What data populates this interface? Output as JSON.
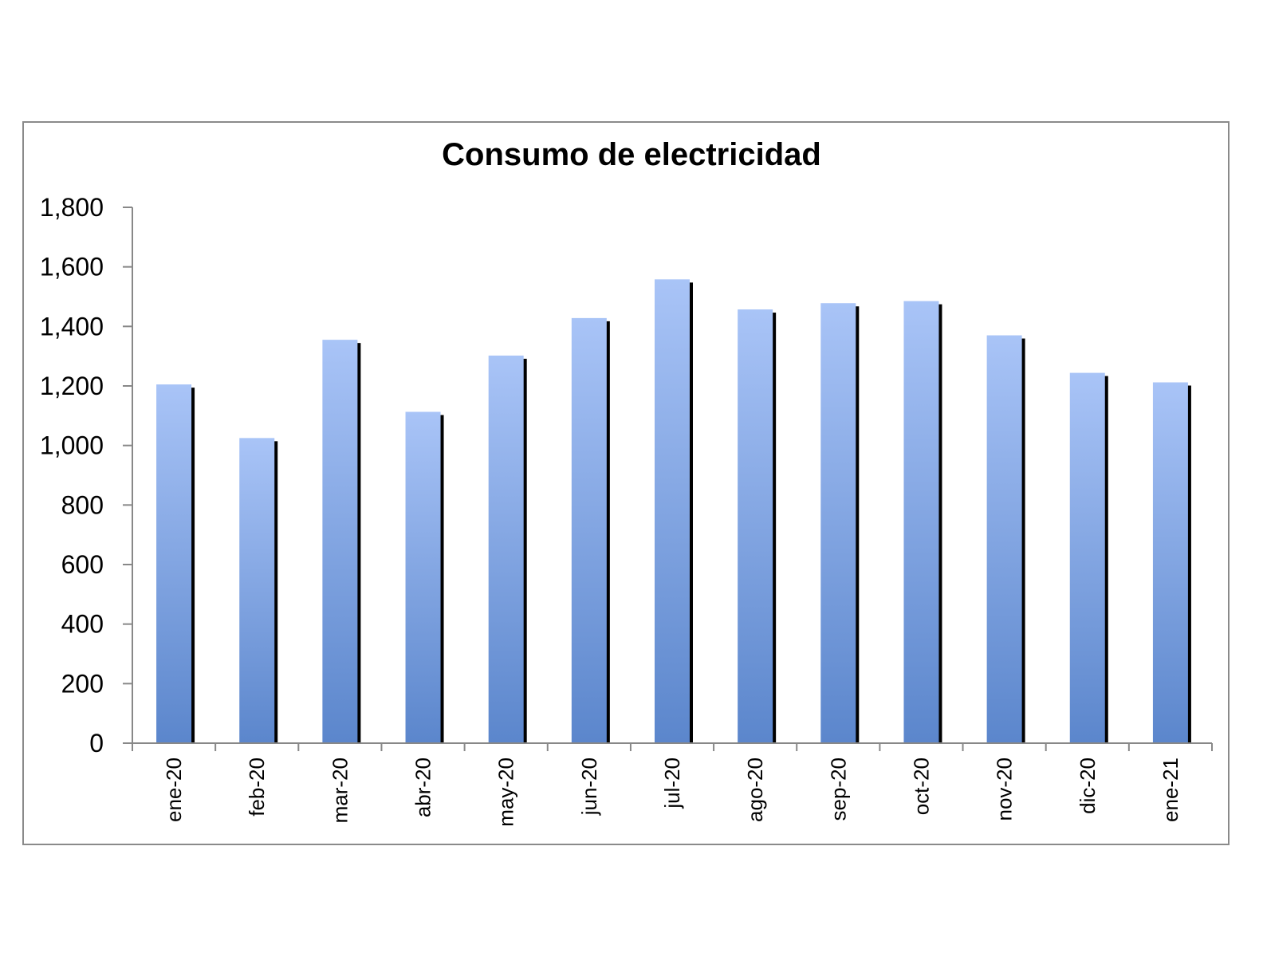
{
  "chart_data": {
    "type": "bar",
    "title": "Consumo de electricidad",
    "xlabel": "",
    "ylabel": "",
    "categories": [
      "ene-20",
      "feb-20",
      "mar-20",
      "abr-20",
      "may-20",
      "jun-20",
      "jul-20",
      "ago-20",
      "sep-20",
      "oct-20",
      "nov-20",
      "dic-20",
      "ene-21"
    ],
    "values": [
      1205,
      1025,
      1355,
      1113,
      1302,
      1428,
      1558,
      1457,
      1478,
      1485,
      1370,
      1244,
      1212
    ],
    "ylim": [
      0,
      1800
    ],
    "yticks": [
      0,
      200,
      400,
      600,
      800,
      1000,
      1200,
      1400,
      1600,
      1800
    ],
    "ytick_labels": [
      "0",
      "200",
      "400",
      "600",
      "800",
      "1,000",
      "1,200",
      "1,400",
      "1,600",
      "1,800"
    ],
    "grid": false,
    "legend": "none",
    "colors": {
      "bar_top": "#a9c4f7",
      "bar_bottom": "#5b86cc",
      "shadow": "#000000",
      "axis": "#888888"
    }
  }
}
